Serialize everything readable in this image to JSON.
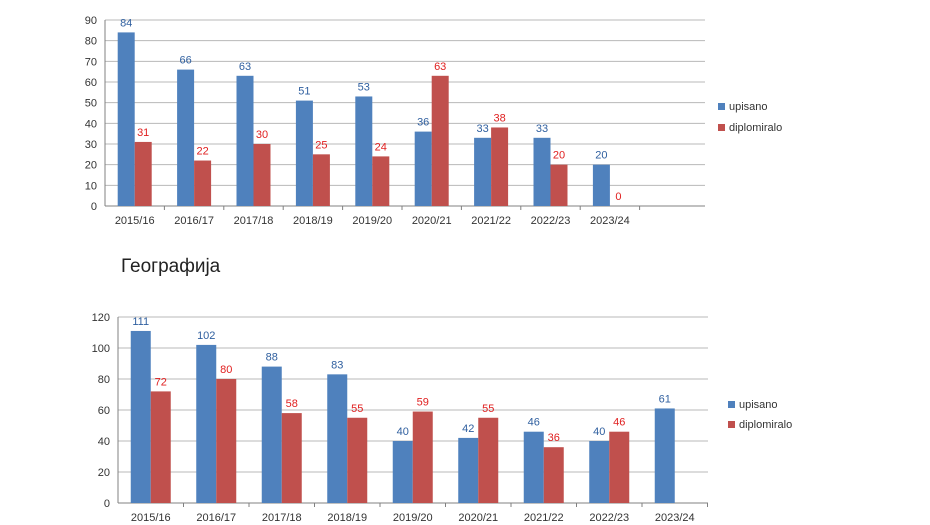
{
  "section_title": "Географија",
  "colors": {
    "upisano": "#4F81BD",
    "diplomiralo": "#C0504D",
    "label_upisano": "#2F5F9F",
    "label_diplomiralo": "#E02020"
  },
  "chart_data": [
    {
      "type": "bar",
      "title": "",
      "categories": [
        "2015/16",
        "2016/17",
        "2017/18",
        "2018/19",
        "2019/20",
        "2020/21",
        "2021/22",
        "2022/23",
        "2023/24"
      ],
      "series": [
        {
          "name": "upisano",
          "values": [
            84,
            66,
            63,
            51,
            53,
            36,
            33,
            33,
            20
          ]
        },
        {
          "name": "diplomiralo",
          "values": [
            31,
            22,
            30,
            25,
            24,
            63,
            38,
            20,
            0
          ]
        }
      ],
      "ylim": [
        0,
        90
      ],
      "yticks": [
        0,
        10,
        20,
        30,
        40,
        50,
        60,
        70,
        80,
        90
      ],
      "grid": true,
      "legend": "right"
    },
    {
      "type": "bar",
      "title": "",
      "categories": [
        "2015/16",
        "2016/17",
        "2017/18",
        "2018/19",
        "2019/20",
        "2020/21",
        "2021/22",
        "2022/23",
        "2023/24"
      ],
      "series": [
        {
          "name": "upisano",
          "values": [
            111,
            102,
            88,
            83,
            40,
            42,
            46,
            40,
            61
          ]
        },
        {
          "name": "diplomiralo",
          "values": [
            72,
            80,
            58,
            55,
            59,
            55,
            36,
            46,
            null
          ]
        }
      ],
      "ylim": [
        0,
        120
      ],
      "yticks": [
        0,
        20,
        40,
        60,
        80,
        100,
        120
      ],
      "grid": true,
      "legend": "right"
    }
  ]
}
